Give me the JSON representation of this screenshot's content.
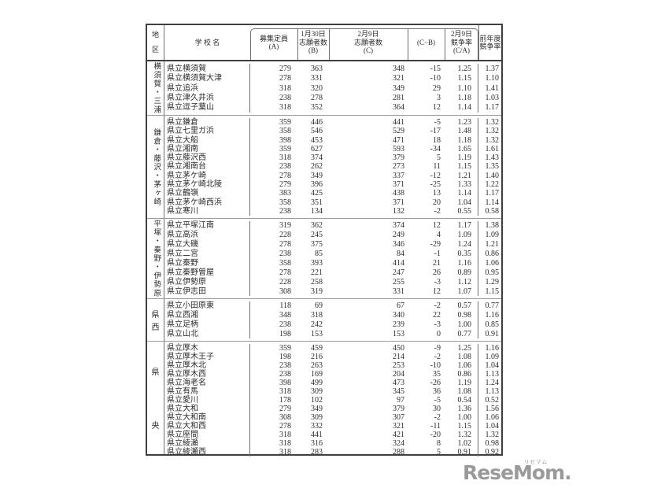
{
  "header": {
    "district": "地\n区",
    "school": "学 校 名",
    "capacity": "募集定員\n(A)",
    "jan30": "1月30日\n志願者数\n(B)",
    "feb9": "2月9日\n志願者数\n(C)",
    "diff": "(C−B)",
    "rate": "2月9日\n競争率\n(C/A)",
    "prev": "前年度\n競争率"
  },
  "districts": [
    {
      "name": "横須賀・三浦",
      "schools": [
        {
          "name": "県立横須賀",
          "a": 279,
          "b": 363,
          "c": 348,
          "cb": "-15",
          "ca": "1.25",
          "prev": "1.37"
        },
        {
          "name": "県立横須賀大津",
          "a": 278,
          "b": 331,
          "c": 321,
          "cb": "-10",
          "ca": "1.15",
          "prev": "1.10"
        },
        {
          "name": "県立追浜",
          "a": 318,
          "b": 320,
          "c": 349,
          "cb": "29",
          "ca": "1.10",
          "prev": "1.41"
        },
        {
          "name": "県立津久井浜",
          "a": 238,
          "b": 278,
          "c": 281,
          "cb": "3",
          "ca": "1.18",
          "prev": "1.03"
        },
        {
          "name": "県立逗子葉山",
          "a": 318,
          "b": 352,
          "c": 364,
          "cb": "12",
          "ca": "1.14",
          "prev": "1.17"
        }
      ]
    },
    {
      "name": "鎌倉・藤沢・茅ヶ崎",
      "schools": [
        {
          "name": "県立鎌倉",
          "a": 359,
          "b": 446,
          "c": 441,
          "cb": "-5",
          "ca": "1.23",
          "prev": "1.32"
        },
        {
          "name": "県立七里ガ浜",
          "a": 358,
          "b": 546,
          "c": 529,
          "cb": "-17",
          "ca": "1.48",
          "prev": "1.32"
        },
        {
          "name": "県立大船",
          "a": 398,
          "b": 453,
          "c": 471,
          "cb": "18",
          "ca": "1.18",
          "prev": "1.32"
        },
        {
          "name": "県立湘南",
          "a": 359,
          "b": 627,
          "c": 593,
          "cb": "-34",
          "ca": "1.65",
          "prev": "1.61"
        },
        {
          "name": "県立藤沢西",
          "a": 318,
          "b": 374,
          "c": 379,
          "cb": "5",
          "ca": "1.19",
          "prev": "1.43"
        },
        {
          "name": "県立湘南台",
          "a": 238,
          "b": 262,
          "c": 273,
          "cb": "11",
          "ca": "1.15",
          "prev": "1.35"
        },
        {
          "name": "県立茅ケ崎",
          "a": 278,
          "b": 349,
          "c": 337,
          "cb": "-12",
          "ca": "1.21",
          "prev": "1.40"
        },
        {
          "name": "県立茅ケ崎北陵",
          "a": 279,
          "b": 396,
          "c": 371,
          "cb": "-25",
          "ca": "1.33",
          "prev": "1.22"
        },
        {
          "name": "県立鶴嶺",
          "a": 383,
          "b": 425,
          "c": 438,
          "cb": "13",
          "ca": "1.14",
          "prev": "1.17"
        },
        {
          "name": "県立茅ケ崎西浜",
          "a": 358,
          "b": 351,
          "c": 371,
          "cb": "20",
          "ca": "1.04",
          "prev": "1.14"
        },
        {
          "name": "県立寒川",
          "a": 238,
          "b": 134,
          "c": 132,
          "cb": "-2",
          "ca": "0.55",
          "prev": "0.58"
        }
      ]
    },
    {
      "name": "平塚・秦野・伊勢原",
      "schools": [
        {
          "name": "県立平塚江南",
          "a": 319,
          "b": 362,
          "c": 374,
          "cb": "12",
          "ca": "1.17",
          "prev": "1.38"
        },
        {
          "name": "県立高浜",
          "a": 228,
          "b": 245,
          "c": 249,
          "cb": "4",
          "ca": "1.09",
          "prev": "1.09"
        },
        {
          "name": "県立大磯",
          "a": 278,
          "b": 375,
          "c": 346,
          "cb": "-29",
          "ca": "1.24",
          "prev": "1.21"
        },
        {
          "name": "県立二宮",
          "a": 238,
          "b": 85,
          "c": 84,
          "cb": "-1",
          "ca": "0.35",
          "prev": "0.86"
        },
        {
          "name": "県立秦野",
          "a": 358,
          "b": 393,
          "c": 414,
          "cb": "21",
          "ca": "1.16",
          "prev": "1.06"
        },
        {
          "name": "県立秦野曽屋",
          "a": 278,
          "b": 221,
          "c": 247,
          "cb": "26",
          "ca": "0.89",
          "prev": "0.95"
        },
        {
          "name": "県立伊勢原",
          "a": 228,
          "b": 258,
          "c": 255,
          "cb": "-3",
          "ca": "1.12",
          "prev": "1.29"
        },
        {
          "name": "県立伊志田",
          "a": 308,
          "b": 319,
          "c": 331,
          "cb": "12",
          "ca": "1.07",
          "prev": "1.15"
        }
      ]
    },
    {
      "name": "県西",
      "schools": [
        {
          "name": "県立小田原東",
          "a": 118,
          "b": 69,
          "c": 67,
          "cb": "-2",
          "ca": "0.57",
          "prev": "0.77"
        },
        {
          "name": "県立西湘",
          "a": 348,
          "b": 318,
          "c": 340,
          "cb": "22",
          "ca": "0.98",
          "prev": "1.16"
        },
        {
          "name": "県立足柄",
          "a": 238,
          "b": 242,
          "c": 239,
          "cb": "-3",
          "ca": "1.00",
          "prev": "0.85"
        },
        {
          "name": "県立山北",
          "a": 198,
          "b": 153,
          "c": 153,
          "cb": "0",
          "ca": "0.77",
          "prev": "0.91"
        }
      ]
    },
    {
      "name": "県央",
      "schools": [
        {
          "name": "県立厚木",
          "a": 359,
          "b": 459,
          "c": 450,
          "cb": "-9",
          "ca": "1.25",
          "prev": "1.16"
        },
        {
          "name": "県立厚木王子",
          "a": 198,
          "b": 216,
          "c": 214,
          "cb": "-2",
          "ca": "1.08",
          "prev": "1.09"
        },
        {
          "name": "県立厚木北",
          "a": 238,
          "b": 263,
          "c": 253,
          "cb": "-10",
          "ca": "1.06",
          "prev": "1.04"
        },
        {
          "name": "県立厚木西",
          "a": 238,
          "b": 169,
          "c": 204,
          "cb": "35",
          "ca": "0.86",
          "prev": "1.13"
        },
        {
          "name": "県立海老名",
          "a": 398,
          "b": 499,
          "c": 473,
          "cb": "-26",
          "ca": "1.19",
          "prev": "1.24"
        },
        {
          "name": "県立有馬",
          "a": 318,
          "b": 309,
          "c": 345,
          "cb": "36",
          "ca": "1.08",
          "prev": "1.13"
        },
        {
          "name": "県立愛川",
          "a": 178,
          "b": 102,
          "c": 97,
          "cb": "-5",
          "ca": "0.54",
          "prev": "0.52"
        },
        {
          "name": "県立大和",
          "a": 279,
          "b": 349,
          "c": 379,
          "cb": "30",
          "ca": "1.36",
          "prev": "1.56"
        },
        {
          "name": "県立大和南",
          "a": 308,
          "b": 309,
          "c": 307,
          "cb": "-2",
          "ca": "1.00",
          "prev": "1.06"
        },
        {
          "name": "県立大和西",
          "a": 278,
          "b": 332,
          "c": 321,
          "cb": "-11",
          "ca": "1.15",
          "prev": "1.04"
        },
        {
          "name": "県立座間",
          "a": 318,
          "b": 441,
          "c": 421,
          "cb": "-20",
          "ca": "1.32",
          "prev": "1.32"
        },
        {
          "name": "県立綾瀬",
          "a": 318,
          "b": 316,
          "c": 324,
          "cb": "8",
          "ca": "1.02",
          "prev": "0.98"
        },
        {
          "name": "県立綾瀬西",
          "a": 318,
          "b": 283,
          "c": 288,
          "cb": "5",
          "ca": "0.91",
          "prev": "0.92"
        }
      ]
    }
  ],
  "logo": {
    "text": "ReseMom",
    "dot": ".",
    "ruby": "リセマム"
  }
}
